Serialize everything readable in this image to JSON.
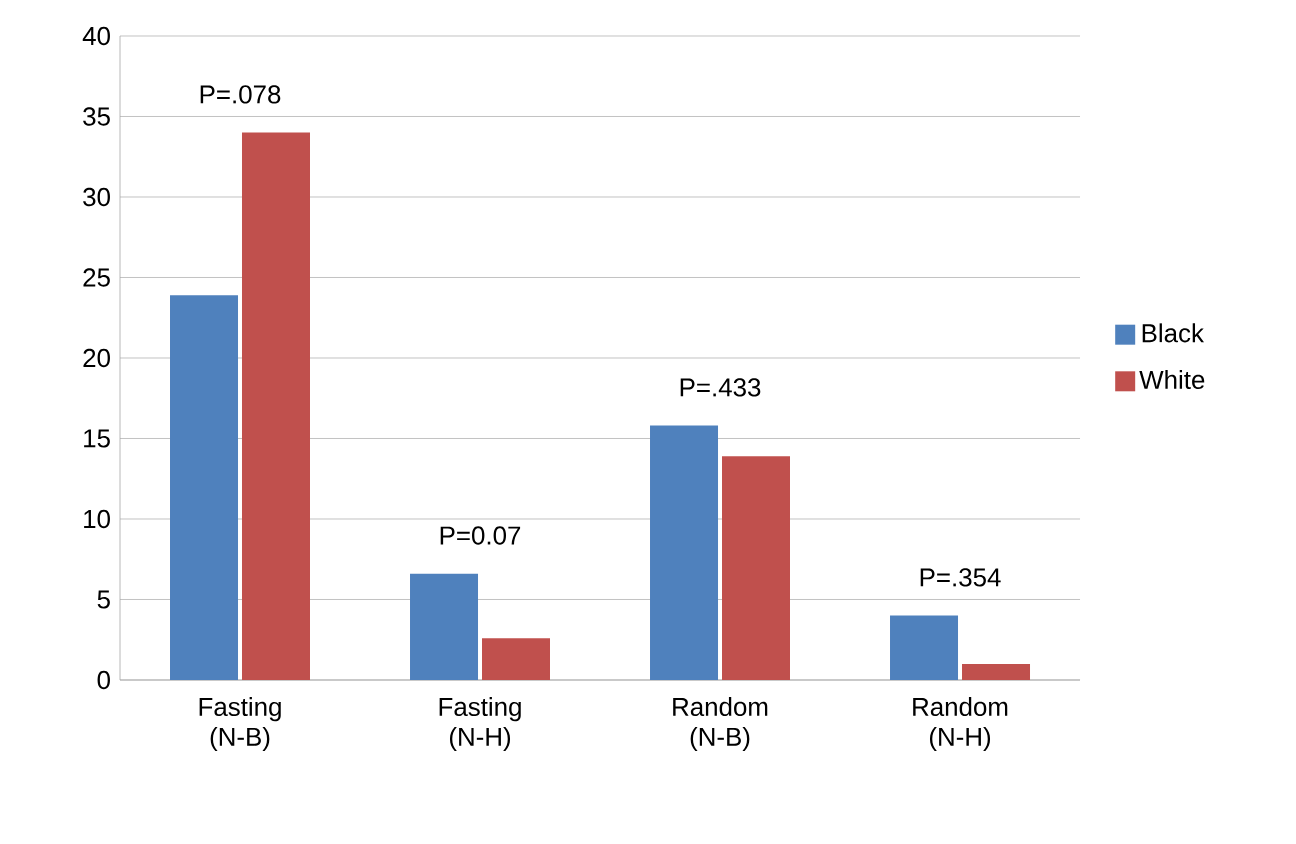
{
  "chart_data": {
    "type": "bar",
    "categories": [
      "Fasting (N-B)",
      "Fasting (N-H)",
      "Random (N-B)",
      "Random (N-H)"
    ],
    "series": [
      {
        "name": "Black",
        "color": "#4f81bd",
        "values": [
          23.9,
          6.6,
          15.8,
          4.0
        ]
      },
      {
        "name": "White",
        "color": "#c0504d",
        "values": [
          34.0,
          2.6,
          13.9,
          1.0
        ]
      }
    ],
    "ylim": [
      0,
      40
    ],
    "yticks": [
      0,
      5,
      10,
      15,
      20,
      25,
      30,
      35,
      40
    ],
    "grid": "y",
    "legend": "right",
    "annotations": [
      "P=.078",
      "P=0.07",
      "P=.433",
      "P=.354"
    ]
  }
}
